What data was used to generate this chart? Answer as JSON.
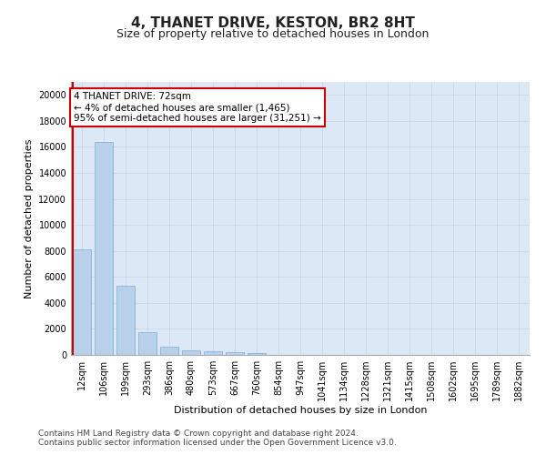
{
  "title": "4, THANET DRIVE, KESTON, BR2 8HT",
  "subtitle": "Size of property relative to detached houses in London",
  "xlabel": "Distribution of detached houses by size in London",
  "ylabel": "Number of detached properties",
  "categories": [
    "12sqm",
    "106sqm",
    "199sqm",
    "293sqm",
    "386sqm",
    "480sqm",
    "573sqm",
    "667sqm",
    "760sqm",
    "854sqm",
    "947sqm",
    "1041sqm",
    "1134sqm",
    "1228sqm",
    "1321sqm",
    "1415sqm",
    "1508sqm",
    "1602sqm",
    "1695sqm",
    "1789sqm",
    "1882sqm"
  ],
  "values": [
    8100,
    16400,
    5300,
    1750,
    650,
    350,
    270,
    210,
    160,
    0,
    0,
    0,
    0,
    0,
    0,
    0,
    0,
    0,
    0,
    0,
    0
  ],
  "bar_color": "#b8d0ea",
  "bar_edge_color": "#7aadd4",
  "grid_color": "#c8d4e0",
  "ax_bg_color": "#dce8f5",
  "background_color": "#ffffff",
  "annotation_title": "4 THANET DRIVE: 72sqm",
  "annotation_line1": "← 4% of detached houses are smaller (1,465)",
  "annotation_line2": "95% of semi-detached houses are larger (31,251) →",
  "annotation_box_color": "#ffffff",
  "annotation_box_edge": "#cc0000",
  "vline_color": "#cc0000",
  "ylim": [
    0,
    21000
  ],
  "yticks": [
    0,
    2000,
    4000,
    6000,
    8000,
    10000,
    12000,
    14000,
    16000,
    18000,
    20000
  ],
  "footer_line1": "Contains HM Land Registry data © Crown copyright and database right 2024.",
  "footer_line2": "Contains public sector information licensed under the Open Government Licence v3.0.",
  "title_fontsize": 11,
  "subtitle_fontsize": 9,
  "axis_label_fontsize": 8,
  "tick_fontsize": 7,
  "annotation_fontsize": 7.5,
  "footer_fontsize": 6.5
}
